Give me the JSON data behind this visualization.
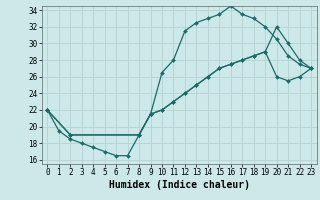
{
  "title": "",
  "xlabel": "Humidex (Indice chaleur)",
  "background_color": "#cce8e8",
  "grid_color": "#b8d4d4",
  "line_color": "#1a6b6b",
  "xlim": [
    -0.5,
    23.5
  ],
  "ylim": [
    15.5,
    34.5
  ],
  "xticks": [
    0,
    1,
    2,
    3,
    4,
    5,
    6,
    7,
    8,
    9,
    10,
    11,
    12,
    13,
    14,
    15,
    16,
    17,
    18,
    19,
    20,
    21,
    22,
    23
  ],
  "yticks": [
    16,
    18,
    20,
    22,
    24,
    26,
    28,
    30,
    32,
    34
  ],
  "line1_x": [
    0,
    1,
    2,
    3,
    4,
    5,
    6,
    7,
    8,
    9,
    10,
    11,
    12,
    13,
    14,
    15,
    16,
    17,
    18,
    19,
    20,
    21,
    22,
    23
  ],
  "line1_y": [
    22,
    19.5,
    18.5,
    18,
    17.5,
    17,
    16.5,
    16.5,
    19,
    21.5,
    26.5,
    28,
    31.5,
    32.5,
    33,
    33.5,
    34.5,
    33.5,
    33,
    32,
    30.5,
    28.5,
    27.5,
    27
  ],
  "line2_x": [
    0,
    2,
    8,
    9,
    10,
    11,
    12,
    13,
    14,
    15,
    16,
    17,
    18,
    19,
    20,
    21,
    22,
    23
  ],
  "line2_y": [
    22,
    19,
    19,
    21.5,
    22,
    23,
    24,
    25,
    26,
    27,
    27.5,
    28,
    28.5,
    29,
    32,
    30,
    28,
    27
  ],
  "line3_x": [
    0,
    2,
    8,
    9,
    10,
    11,
    12,
    13,
    14,
    15,
    16,
    17,
    18,
    19,
    20,
    21,
    22,
    23
  ],
  "line3_y": [
    22,
    19,
    19,
    21.5,
    22,
    23,
    24,
    25,
    26,
    27,
    27.5,
    28,
    28.5,
    29,
    26,
    25.5,
    26,
    27
  ]
}
